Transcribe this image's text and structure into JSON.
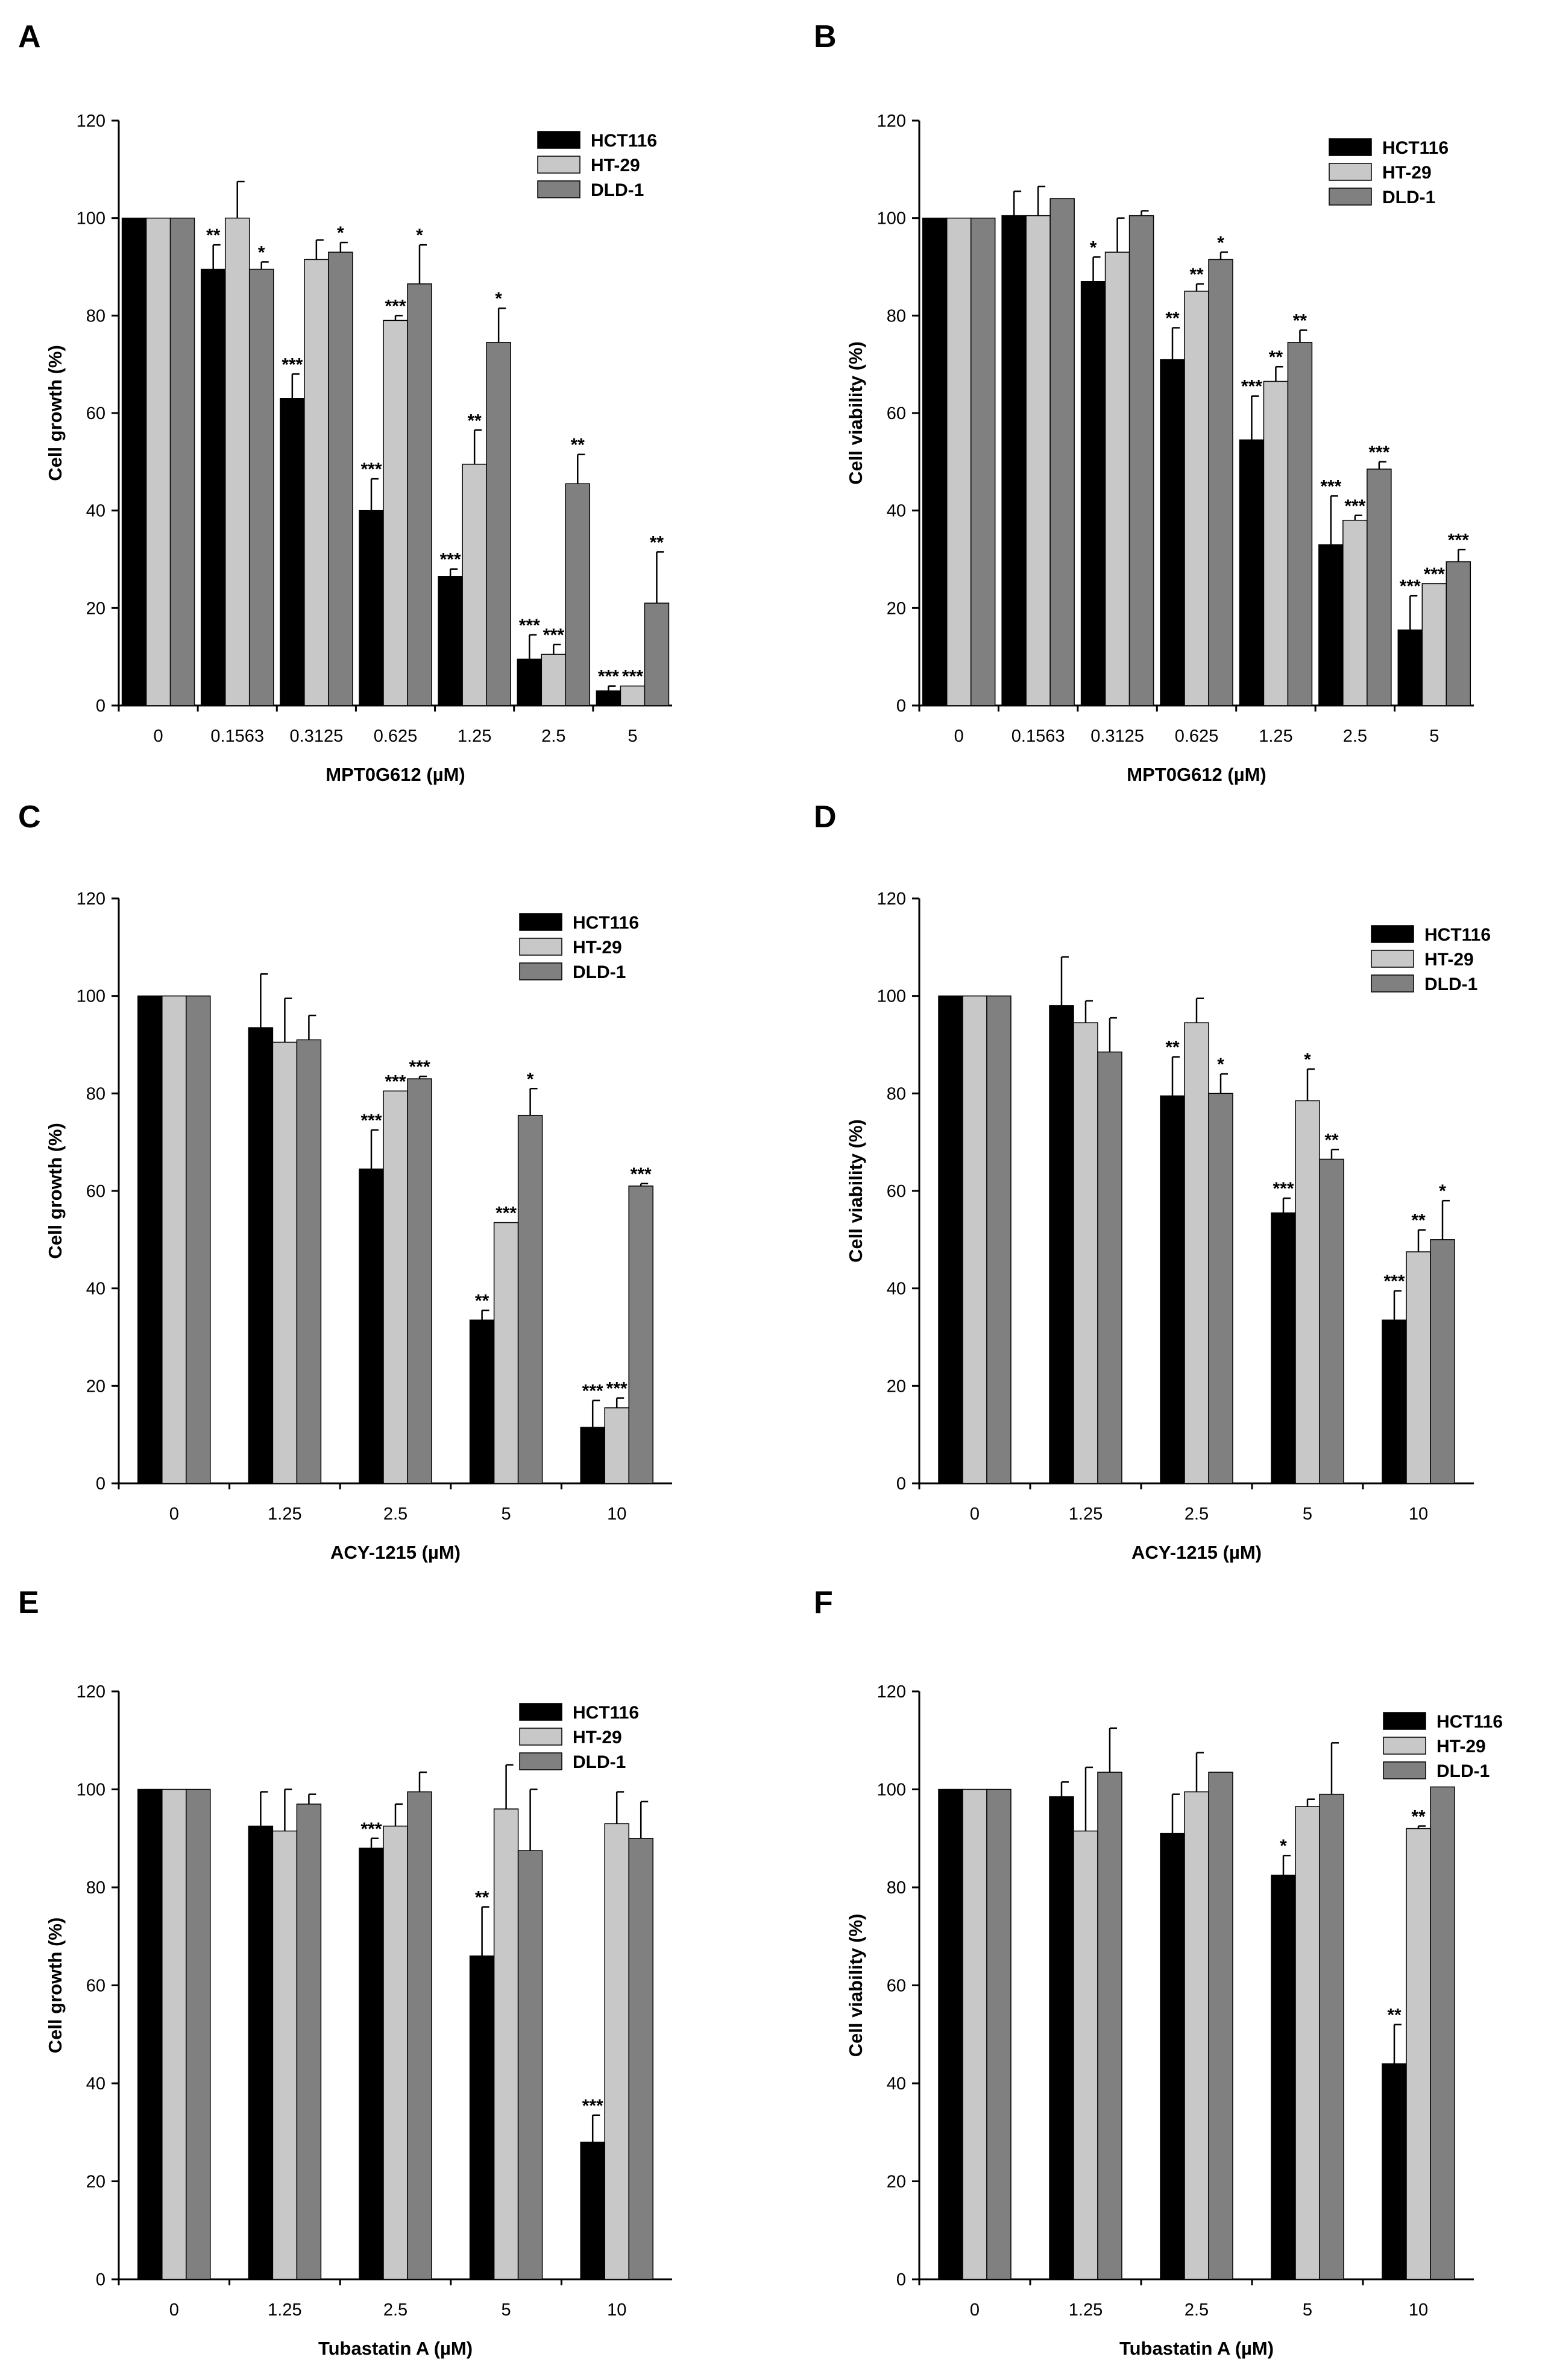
{
  "series_names": [
    "HCT116",
    "HT-29",
    "DLD-1"
  ],
  "colors": {
    "HCT116": "#000000",
    "HT-29": "#c8c8c8",
    "DLD-1": "#808080",
    "axis": "#000000",
    "background": "#ffffff"
  },
  "chart_data": [
    {
      "panel": "A",
      "type": "bar",
      "ylabel": "Cell growth (%)",
      "xlabel": "MPT0G612 (µM)",
      "ylim": [
        0,
        120
      ],
      "yticks": [
        0,
        20,
        40,
        60,
        80,
        100,
        120
      ],
      "categories": [
        "0",
        "0.1563",
        "0.3125",
        "0.625",
        "1.25",
        "2.5",
        "5"
      ],
      "legend_position": "top-right",
      "series": [
        {
          "name": "HCT116",
          "values": [
            100,
            89.5,
            63,
            40,
            26.5,
            9.5,
            3
          ],
          "errors": [
            0,
            5,
            5,
            6.5,
            1.5,
            5,
            1
          ],
          "stars": [
            "",
            "**",
            "***",
            "***",
            "***",
            "***",
            "***"
          ]
        },
        {
          "name": "HT-29",
          "values": [
            100,
            100,
            91.5,
            79,
            49.5,
            10.5,
            4
          ],
          "errors": [
            0,
            7.5,
            4,
            1,
            7,
            2,
            0
          ],
          "stars": [
            "",
            "",
            "",
            "***",
            "**",
            "***",
            "***"
          ]
        },
        {
          "name": "DLD-1",
          "values": [
            100,
            89.5,
            93,
            86.5,
            74.5,
            45.5,
            21
          ],
          "errors": [
            0,
            1.5,
            2,
            8,
            7,
            6,
            10.5
          ],
          "stars": [
            "",
            "*",
            "*",
            "*",
            "*",
            "**",
            "**"
          ]
        }
      ]
    },
    {
      "panel": "B",
      "type": "bar",
      "ylabel": "Cell viability (%)",
      "xlabel": "MPT0G612 (µM)",
      "ylim": [
        0,
        120
      ],
      "yticks": [
        0,
        20,
        40,
        60,
        80,
        100,
        120
      ],
      "categories": [
        "0",
        "0.1563",
        "0.3125",
        "0.625",
        "1.25",
        "2.5",
        "5"
      ],
      "legend_position": "top-right",
      "series": [
        {
          "name": "HCT116",
          "values": [
            100,
            100.5,
            87,
            71,
            54.5,
            33,
            15.5
          ],
          "errors": [
            0,
            5,
            5,
            6.5,
            9,
            10,
            7
          ],
          "stars": [
            "",
            "",
            "*",
            "**",
            "***",
            "***",
            "***"
          ]
        },
        {
          "name": "HT-29",
          "values": [
            100,
            100.5,
            93,
            85,
            66.5,
            38,
            25
          ],
          "errors": [
            0,
            6,
            7,
            1.5,
            3,
            1,
            0
          ],
          "stars": [
            "",
            "",
            "",
            "**",
            "**",
            "***",
            "***"
          ]
        },
        {
          "name": "DLD-1",
          "values": [
            100,
            104,
            100.5,
            91.5,
            74.5,
            48.5,
            29.5
          ],
          "errors": [
            0,
            0,
            1,
            1.5,
            2.5,
            1.5,
            2.5
          ],
          "stars": [
            "",
            "",
            "",
            "*",
            "**",
            "***",
            "***"
          ]
        }
      ]
    },
    {
      "panel": "C",
      "type": "bar",
      "ylabel": "Cell growth (%)",
      "xlabel": "ACY-1215 (µM)",
      "ylim": [
        0,
        120
      ],
      "yticks": [
        0,
        20,
        40,
        60,
        80,
        100,
        120
      ],
      "categories": [
        "0",
        "1.25",
        "2.5",
        "5",
        "10"
      ],
      "legend_position": "top-right",
      "series": [
        {
          "name": "HCT116",
          "values": [
            100,
            93.5,
            64.5,
            33.5,
            11.5
          ],
          "errors": [
            0,
            11,
            8,
            2,
            5.5
          ],
          "stars": [
            "",
            "",
            "***",
            "**",
            "***"
          ]
        },
        {
          "name": "HT-29",
          "values": [
            100,
            90.5,
            80.5,
            53.5,
            15.5
          ],
          "errors": [
            0,
            9,
            0,
            0,
            2
          ],
          "stars": [
            "",
            "",
            "***",
            "***",
            "***"
          ]
        },
        {
          "name": "DLD-1",
          "values": [
            100,
            91,
            83,
            75.5,
            61
          ],
          "errors": [
            0,
            5,
            0.5,
            5.5,
            0.5
          ],
          "stars": [
            "",
            "",
            "***",
            "*",
            "***"
          ]
        }
      ]
    },
    {
      "panel": "D",
      "type": "bar",
      "ylabel": "Cell viability (%)",
      "xlabel": "ACY-1215 (µM)",
      "ylim": [
        0,
        120
      ],
      "yticks": [
        0,
        20,
        40,
        60,
        80,
        100,
        120
      ],
      "categories": [
        "0",
        "1.25",
        "2.5",
        "5",
        "10"
      ],
      "legend_position": "top-right",
      "series": [
        {
          "name": "HCT116",
          "values": [
            100,
            98,
            79.5,
            55.5,
            33.5
          ],
          "errors": [
            0,
            10,
            8,
            3,
            6
          ],
          "stars": [
            "",
            "",
            "**",
            "***",
            "***"
          ]
        },
        {
          "name": "HT-29",
          "values": [
            100,
            94.5,
            94.5,
            78.5,
            47.5
          ],
          "errors": [
            0,
            4.5,
            5,
            6.5,
            4.5
          ],
          "stars": [
            "",
            "",
            "",
            "*",
            "**"
          ]
        },
        {
          "name": "DLD-1",
          "values": [
            100,
            88.5,
            80,
            66.5,
            50
          ],
          "errors": [
            0,
            7,
            4,
            2,
            8
          ],
          "stars": [
            "",
            "",
            "*",
            "**",
            "*"
          ]
        }
      ]
    },
    {
      "panel": "E",
      "type": "bar",
      "ylabel": "Cell growth (%)",
      "xlabel": "Tubastatin A (µM)",
      "ylim": [
        0,
        120
      ],
      "yticks": [
        0,
        20,
        40,
        60,
        80,
        100,
        120
      ],
      "categories": [
        "0",
        "1.25",
        "2.5",
        "5",
        "10"
      ],
      "legend_position": "top-right",
      "series": [
        {
          "name": "HCT116",
          "values": [
            100,
            92.5,
            88,
            66,
            28
          ],
          "errors": [
            0,
            7,
            2,
            10,
            5.5
          ],
          "stars": [
            "",
            "",
            "***",
            "**",
            "***"
          ]
        },
        {
          "name": "HT-29",
          "values": [
            100,
            91.5,
            92.5,
            96,
            93
          ],
          "errors": [
            0,
            8.5,
            4.5,
            9,
            6.5
          ],
          "stars": [
            "",
            "",
            "",
            "",
            ""
          ]
        },
        {
          "name": "DLD-1",
          "values": [
            100,
            97,
            99.5,
            87.5,
            90
          ],
          "errors": [
            0,
            2,
            4,
            12.5,
            7.5
          ],
          "stars": [
            "",
            "",
            "",
            "",
            ""
          ]
        }
      ]
    },
    {
      "panel": "F",
      "type": "bar",
      "ylabel": "Cell viability (%)",
      "xlabel": "Tubastatin A (µM)",
      "ylim": [
        0,
        120
      ],
      "yticks": [
        0,
        20,
        40,
        60,
        80,
        100,
        120
      ],
      "categories": [
        "0",
        "1.25",
        "2.5",
        "5",
        "10"
      ],
      "legend_position": "top-right",
      "series": [
        {
          "name": "HCT116",
          "values": [
            100,
            98.5,
            91,
            82.5,
            44
          ],
          "errors": [
            0,
            3,
            8,
            4,
            8
          ],
          "stars": [
            "",
            "",
            "",
            "*",
            "**"
          ]
        },
        {
          "name": "HT-29",
          "values": [
            100,
            91.5,
            99.5,
            96.5,
            92
          ],
          "errors": [
            0,
            13,
            8,
            1.5,
            0.5
          ],
          "stars": [
            "",
            "",
            "",
            "",
            "**"
          ]
        },
        {
          "name": "DLD-1",
          "values": [
            100,
            103.5,
            103.5,
            99,
            100.5
          ],
          "errors": [
            0,
            9,
            0,
            10.5,
            0
          ],
          "stars": [
            "",
            "",
            "",
            "",
            ""
          ]
        }
      ]
    }
  ]
}
